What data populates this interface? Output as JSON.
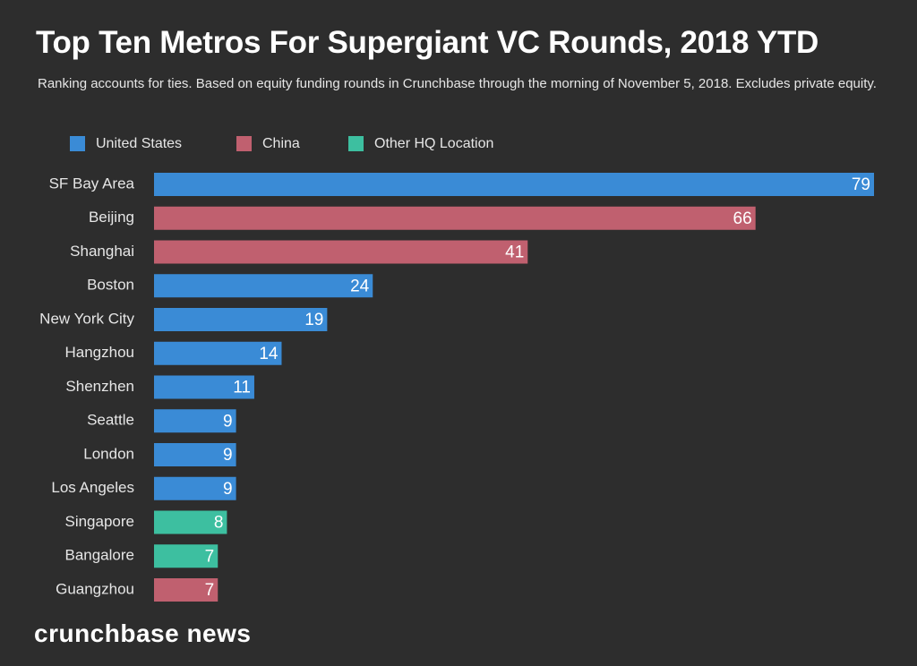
{
  "chart_data": {
    "type": "hbar",
    "title": "Top Ten Metros For Supergiant VC Rounds, 2018 YTD",
    "subtitle": "Ranking accounts for ties. Based on equity funding rounds in Crunchbase through the morning of November 5, 2018. Excludes private equity.",
    "source": "crunchbase news",
    "categories": [
      "SF Bay Area",
      "Beijing",
      "Shanghai",
      "Boston",
      "New York City",
      "Hangzhou",
      "Shenzhen",
      "Seattle",
      "London",
      "Los Angeles",
      "Singapore",
      "Bangalore",
      "Guangzhou"
    ],
    "series": [
      {
        "name": "United States",
        "color": "#3a8bd6",
        "values": [
          79,
          null,
          null,
          24,
          19,
          14,
          11,
          9,
          9,
          9,
          null,
          null,
          null
        ]
      },
      {
        "name": "China",
        "color": "#c0606f",
        "values": [
          null,
          66,
          41,
          null,
          null,
          null,
          null,
          null,
          null,
          null,
          null,
          null,
          7
        ]
      },
      {
        "name": "Other HQ Location",
        "color": "#3dbfa0",
        "values": [
          null,
          null,
          null,
          null,
          null,
          null,
          null,
          null,
          null,
          null,
          8,
          7,
          null
        ]
      }
    ],
    "legend": "top-left"
  }
}
